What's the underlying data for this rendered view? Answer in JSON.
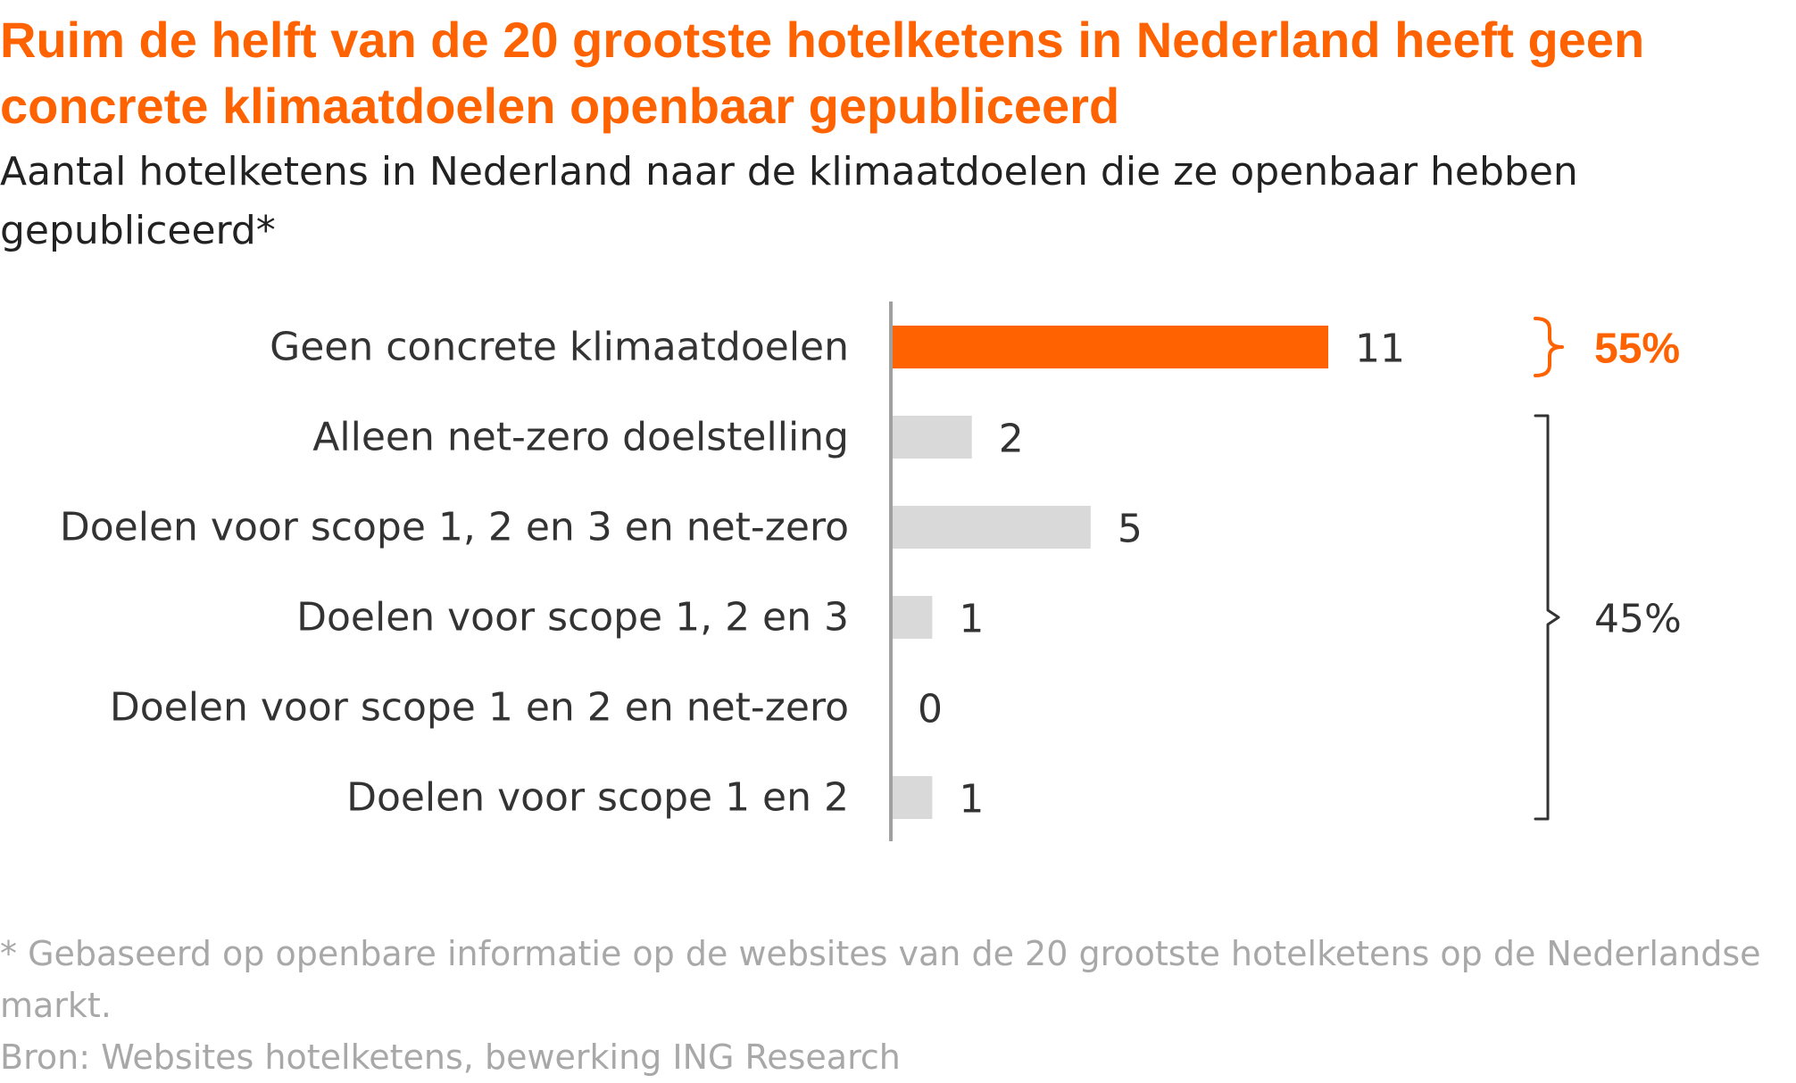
{
  "title": "Ruim de helft van de 20 grootste hotelketens in Nederland heeft geen concrete klimaatdoelen openbaar gepubliceerd",
  "subtitle": "Aantal hotelketens in Nederland naar de klimaatdoelen die ze openbaar hebben gepubliceerd*",
  "footnote": "* Gebaseerd op openbare informatie op de websites van de 20 grootste hotelketens op de Nederlandse markt.",
  "source": "Bron: Websites hotelketens, bewerking ING Research",
  "colors": {
    "accent": "#FF6200",
    "bar_default": "#D9D9D9",
    "axis": "#A0A0A0",
    "text": "#333333"
  },
  "chart_data": {
    "type": "bar",
    "orientation": "horizontal",
    "categories": [
      "Geen concrete klimaatdoelen",
      "Alleen net-zero doelstelling",
      "Doelen voor scope 1, 2 en 3 en net-zero",
      "Doelen voor scope 1, 2 en 3",
      "Doelen voor scope 1 en 2 en net-zero",
      "Doelen voor scope 1 en 2"
    ],
    "values": [
      11,
      2,
      5,
      1,
      0,
      1
    ],
    "value_labels": [
      "11",
      "2",
      "5",
      "1",
      "0",
      "1"
    ],
    "highlight_index": 0,
    "xlim": [
      0,
      11
    ],
    "grid": false,
    "annotations": [
      {
        "label": "55%",
        "from_index": 0,
        "to_index": 0,
        "color": "#FF6200",
        "bold": true
      },
      {
        "label": "45%",
        "from_index": 1,
        "to_index": 5,
        "color": "#333333",
        "bold": false
      }
    ]
  }
}
